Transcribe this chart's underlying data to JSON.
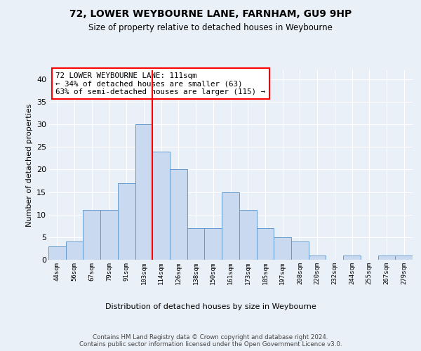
{
  "title1": "72, LOWER WEYBOURNE LANE, FARNHAM, GU9 9HP",
  "title2": "Size of property relative to detached houses in Weybourne",
  "xlabel": "Distribution of detached houses by size in Weybourne",
  "ylabel": "Number of detached properties",
  "bin_labels": [
    "44sqm",
    "56sqm",
    "67sqm",
    "79sqm",
    "91sqm",
    "103sqm",
    "114sqm",
    "126sqm",
    "138sqm",
    "150sqm",
    "161sqm",
    "173sqm",
    "185sqm",
    "197sqm",
    "208sqm",
    "220sqm",
    "232sqm",
    "244sqm",
    "255sqm",
    "267sqm",
    "279sqm"
  ],
  "bar_values": [
    3,
    4,
    11,
    11,
    17,
    30,
    24,
    20,
    7,
    7,
    15,
    11,
    7,
    5,
    4,
    1,
    0,
    1,
    0,
    1,
    1
  ],
  "bar_color": "#c9d9f0",
  "bar_edge_color": "#6699cc",
  "vline_x_idx": 6,
  "vline_color": "red",
  "annotation_text": "72 LOWER WEYBOURNE LANE: 111sqm\n← 34% of detached houses are smaller (63)\n63% of semi-detached houses are larger (115) →",
  "annotation_box_color": "white",
  "annotation_box_edge_color": "red",
  "ylim": [
    0,
    42
  ],
  "yticks": [
    0,
    5,
    10,
    15,
    20,
    25,
    30,
    35,
    40
  ],
  "footer_text": "Contains HM Land Registry data © Crown copyright and database right 2024.\nContains public sector information licensed under the Open Government Licence v3.0.",
  "bg_color": "#eaf0f8",
  "plot_bg_color": "#eaf0f8"
}
